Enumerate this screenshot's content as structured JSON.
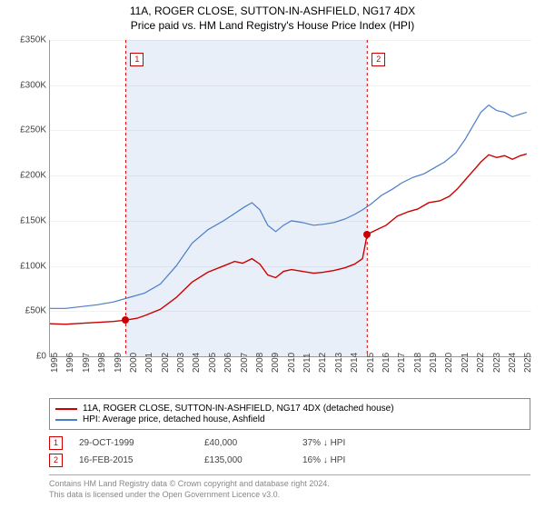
{
  "title": {
    "line1": "11A, ROGER CLOSE, SUTTON-IN-ASHFIELD, NG17 4DX",
    "line2": "Price paid vs. HM Land Registry's House Price Index (HPI)",
    "fontsize": 12
  },
  "chart": {
    "type": "line",
    "background_color": "#ffffff",
    "shaded_band": {
      "x_start": 1999.8,
      "x_end": 2015.1,
      "color": "#e9eff8"
    },
    "xlim": [
      1995,
      2025.5
    ],
    "ylim": [
      0,
      350000
    ],
    "ytick_step": 50000,
    "yticks": [
      "£0",
      "£50K",
      "£100K",
      "£150K",
      "£200K",
      "£250K",
      "£300K",
      "£350K"
    ],
    "xticks": [
      "1995",
      "1996",
      "1997",
      "1998",
      "1999",
      "2000",
      "2001",
      "2002",
      "2003",
      "2004",
      "2005",
      "2006",
      "2007",
      "2008",
      "2009",
      "2010",
      "2011",
      "2012",
      "2013",
      "2014",
      "2015",
      "2016",
      "2017",
      "2018",
      "2019",
      "2020",
      "2021",
      "2022",
      "2023",
      "2024",
      "2025"
    ],
    "grid_color": "rgba(0,0,0,0.05)",
    "axis_color": "#999999",
    "tick_fontsize": 10,
    "series": [
      {
        "name": "property",
        "label": "11A, ROGER CLOSE, SUTTON-IN-ASHFIELD, NG17 4DX (detached house)",
        "color": "#cc0000",
        "line_width": 1.4,
        "data": [
          [
            1995,
            36000
          ],
          [
            1996,
            35500
          ],
          [
            1997,
            36500
          ],
          [
            1998,
            37500
          ],
          [
            1999,
            38500
          ],
          [
            1999.8,
            40000
          ],
          [
            2000.5,
            42000
          ],
          [
            2001,
            45000
          ],
          [
            2002,
            52000
          ],
          [
            2003,
            65000
          ],
          [
            2004,
            82000
          ],
          [
            2005,
            93000
          ],
          [
            2006,
            100000
          ],
          [
            2006.7,
            105000
          ],
          [
            2007.2,
            103000
          ],
          [
            2007.8,
            108000
          ],
          [
            2008.3,
            102000
          ],
          [
            2008.8,
            90000
          ],
          [
            2009.3,
            87000
          ],
          [
            2009.8,
            94000
          ],
          [
            2010.3,
            96000
          ],
          [
            2011,
            94000
          ],
          [
            2011.7,
            92000
          ],
          [
            2012.3,
            93000
          ],
          [
            2013,
            95000
          ],
          [
            2013.7,
            98000
          ],
          [
            2014.3,
            102000
          ],
          [
            2014.8,
            108000
          ],
          [
            2015.1,
            135000
          ],
          [
            2015.7,
            140000
          ],
          [
            2016.3,
            145000
          ],
          [
            2017,
            155000
          ],
          [
            2017.7,
            160000
          ],
          [
            2018.3,
            163000
          ],
          [
            2019,
            170000
          ],
          [
            2019.7,
            172000
          ],
          [
            2020.3,
            177000
          ],
          [
            2020.8,
            185000
          ],
          [
            2021.3,
            195000
          ],
          [
            2021.8,
            205000
          ],
          [
            2022.3,
            215000
          ],
          [
            2022.8,
            223000
          ],
          [
            2023.3,
            220000
          ],
          [
            2023.8,
            222000
          ],
          [
            2024.3,
            218000
          ],
          [
            2024.8,
            222000
          ],
          [
            2025.2,
            224000
          ]
        ]
      },
      {
        "name": "hpi",
        "label": "HPI: Average price, detached house, Ashfield",
        "color": "#4a7ec8",
        "line_width": 1.2,
        "data": [
          [
            1995,
            53000
          ],
          [
            1996,
            53000
          ],
          [
            1997,
            55000
          ],
          [
            1998,
            57000
          ],
          [
            1999,
            60000
          ],
          [
            2000,
            65000
          ],
          [
            2001,
            70000
          ],
          [
            2002,
            80000
          ],
          [
            2003,
            100000
          ],
          [
            2004,
            125000
          ],
          [
            2005,
            140000
          ],
          [
            2006,
            150000
          ],
          [
            2006.7,
            158000
          ],
          [
            2007.3,
            165000
          ],
          [
            2007.8,
            170000
          ],
          [
            2008.3,
            162000
          ],
          [
            2008.8,
            145000
          ],
          [
            2009.3,
            138000
          ],
          [
            2009.8,
            145000
          ],
          [
            2010.3,
            150000
          ],
          [
            2011,
            148000
          ],
          [
            2011.7,
            145000
          ],
          [
            2012.3,
            146000
          ],
          [
            2013,
            148000
          ],
          [
            2013.7,
            152000
          ],
          [
            2014.3,
            157000
          ],
          [
            2014.8,
            162000
          ],
          [
            2015.3,
            168000
          ],
          [
            2016,
            178000
          ],
          [
            2016.7,
            185000
          ],
          [
            2017.3,
            192000
          ],
          [
            2018,
            198000
          ],
          [
            2018.7,
            202000
          ],
          [
            2019.3,
            208000
          ],
          [
            2020,
            215000
          ],
          [
            2020.7,
            225000
          ],
          [
            2021.3,
            240000
          ],
          [
            2021.8,
            255000
          ],
          [
            2022.3,
            270000
          ],
          [
            2022.8,
            278000
          ],
          [
            2023.3,
            272000
          ],
          [
            2023.8,
            270000
          ],
          [
            2024.3,
            265000
          ],
          [
            2024.8,
            268000
          ],
          [
            2025.2,
            270000
          ]
        ]
      }
    ],
    "vlines": [
      {
        "x": 1999.8,
        "color": "#cc0000",
        "label": "1"
      },
      {
        "x": 2015.1,
        "color": "#cc0000",
        "label": "2"
      }
    ],
    "points": [
      {
        "x": 1999.8,
        "y": 40000,
        "color": "#cc0000"
      },
      {
        "x": 2015.1,
        "y": 135000,
        "color": "#cc0000"
      }
    ]
  },
  "legend": {
    "rows": [
      {
        "color": "#cc0000",
        "label_ref": "chart.series.0.label"
      },
      {
        "color": "#4a7ec8",
        "label_ref": "chart.series.1.label"
      }
    ]
  },
  "events": [
    {
      "marker": "1",
      "date": "29-OCT-1999",
      "price": "£40,000",
      "diff": "37% ↓ HPI"
    },
    {
      "marker": "2",
      "date": "16-FEB-2015",
      "price": "£135,000",
      "diff": "16% ↓ HPI"
    }
  ],
  "footer": {
    "line1": "Contains HM Land Registry data © Crown copyright and database right 2024.",
    "line2": "This data is licensed under the Open Government Licence v3.0."
  }
}
